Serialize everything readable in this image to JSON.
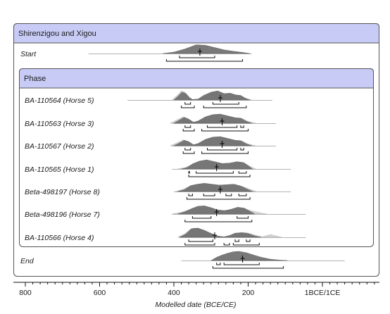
{
  "chart_data": {
    "type": "area",
    "group_title": "Shirenzigou and Xigou",
    "phase_title": "Phase",
    "xlabel": "Modelled date (BCE/CE)",
    "x_axis": {
      "min": 800,
      "max": 0,
      "direction": "BCE descending",
      "ticks": [
        {
          "value": 800,
          "label": "800"
        },
        {
          "value": 600,
          "label": "600"
        },
        {
          "value": 400,
          "label": "400"
        },
        {
          "value": 200,
          "label": "200"
        },
        {
          "value": 0,
          "label": "1BCE/1CE"
        }
      ]
    },
    "rows": [
      {
        "name": "Start",
        "median": 330,
        "range_1": [
          [
            385,
            290
          ]
        ],
        "range_2": [
          [
            420,
            215
          ]
        ],
        "line_from": 630,
        "line_to": 190,
        "posterior": [
          [
            430,
            0
          ],
          [
            400,
            0.15
          ],
          [
            370,
            0.5
          ],
          [
            340,
            0.95
          ],
          [
            315,
            0.9
          ],
          [
            290,
            0.65
          ],
          [
            265,
            0.4
          ],
          [
            240,
            0.25
          ],
          [
            215,
            0.12
          ],
          [
            195,
            0
          ]
        ]
      },
      {
        "name": "BA-110564 (Horse 5)",
        "median": 275,
        "range_1": [
          [
            370,
            355
          ],
          [
            295,
            225
          ]
        ],
        "range_2": [
          [
            380,
            345
          ],
          [
            320,
            205
          ]
        ],
        "line_from": 525,
        "line_to": 135,
        "likelihood": [
          [
            405,
            0
          ],
          [
            390,
            0.55
          ],
          [
            380,
            1.0
          ],
          [
            370,
            0.85
          ],
          [
            358,
            0.3
          ],
          [
            350,
            0.05
          ],
          [
            335,
            0.05
          ],
          [
            320,
            0.3
          ],
          [
            300,
            0.75
          ],
          [
            280,
            0.9
          ],
          [
            262,
            0.6
          ],
          [
            245,
            0.7
          ],
          [
            232,
            0.55
          ],
          [
            218,
            0.45
          ],
          [
            205,
            0.15
          ],
          [
            190,
            0
          ]
        ],
        "posterior": [
          [
            400,
            0
          ],
          [
            388,
            0.45
          ],
          [
            378,
            0.85
          ],
          [
            368,
            0.7
          ],
          [
            358,
            0.25
          ],
          [
            350,
            0.05
          ],
          [
            335,
            0.1
          ],
          [
            320,
            0.5
          ],
          [
            300,
            0.85
          ],
          [
            282,
            1.0
          ],
          [
            265,
            0.7
          ],
          [
            248,
            0.75
          ],
          [
            235,
            0.55
          ],
          [
            220,
            0.5
          ],
          [
            208,
            0.2
          ],
          [
            195,
            0
          ]
        ]
      },
      {
        "name": "BA-110563 (Horse 3)",
        "median": 270,
        "range_1": [
          [
            370,
            355
          ],
          [
            310,
            230
          ],
          [
            220,
            212
          ]
        ],
        "range_2": [
          [
            375,
            345
          ],
          [
            325,
            200
          ]
        ],
        "line_from": 405,
        "line_to": 125,
        "likelihood": [
          [
            410,
            0
          ],
          [
            390,
            0.4
          ],
          [
            375,
            0.7
          ],
          [
            360,
            0.45
          ],
          [
            345,
            0.1
          ],
          [
            330,
            0.2
          ],
          [
            310,
            0.7
          ],
          [
            290,
            0.9
          ],
          [
            270,
            0.85
          ],
          [
            250,
            0.75
          ],
          [
            230,
            0.55
          ],
          [
            215,
            0.5
          ],
          [
            200,
            0.2
          ],
          [
            180,
            0
          ]
        ],
        "posterior": [
          [
            400,
            0
          ],
          [
            385,
            0.35
          ],
          [
            372,
            0.65
          ],
          [
            360,
            0.45
          ],
          [
            348,
            0.1
          ],
          [
            335,
            0.25
          ],
          [
            315,
            0.7
          ],
          [
            295,
            0.95
          ],
          [
            275,
            1.0
          ],
          [
            255,
            0.8
          ],
          [
            235,
            0.6
          ],
          [
            220,
            0.55
          ],
          [
            205,
            0.2
          ],
          [
            190,
            0
          ]
        ]
      },
      {
        "name": "BA-110567 (Horse 2)",
        "median": 270,
        "range_1": [
          [
            370,
            355
          ],
          [
            310,
            230
          ],
          [
            220,
            212
          ]
        ],
        "range_2": [
          [
            375,
            345
          ],
          [
            325,
            200
          ]
        ],
        "line_from": 405,
        "line_to": 125,
        "likelihood": [
          [
            410,
            0
          ],
          [
            390,
            0.35
          ],
          [
            375,
            0.65
          ],
          [
            360,
            0.45
          ],
          [
            345,
            0.1
          ],
          [
            330,
            0.2
          ],
          [
            310,
            0.7
          ],
          [
            290,
            0.9
          ],
          [
            270,
            0.85
          ],
          [
            250,
            0.75
          ],
          [
            230,
            0.55
          ],
          [
            215,
            0.5
          ],
          [
            200,
            0.2
          ],
          [
            180,
            0
          ]
        ],
        "posterior": [
          [
            400,
            0
          ],
          [
            385,
            0.3
          ],
          [
            372,
            0.6
          ],
          [
            360,
            0.45
          ],
          [
            348,
            0.1
          ],
          [
            335,
            0.25
          ],
          [
            315,
            0.7
          ],
          [
            295,
            0.95
          ],
          [
            275,
            1.0
          ],
          [
            255,
            0.8
          ],
          [
            235,
            0.6
          ],
          [
            220,
            0.55
          ],
          [
            205,
            0.2
          ],
          [
            190,
            0
          ]
        ]
      },
      {
        "name": "BA-110565 (Horse 1)",
        "median": 285,
        "range_1": [
          [
            360,
            358
          ],
          [
            340,
            240
          ],
          [
            225,
            205
          ]
        ],
        "range_2": [
          [
            360,
            195
          ]
        ],
        "line_from": 405,
        "line_to": 85,
        "likelihood": [
          [
            390,
            0
          ],
          [
            370,
            0.15
          ],
          [
            350,
            0.5
          ],
          [
            330,
            0.75
          ],
          [
            310,
            0.85
          ],
          [
            285,
            0.7
          ],
          [
            265,
            0.55
          ],
          [
            245,
            0.6
          ],
          [
            225,
            0.75
          ],
          [
            210,
            0.65
          ],
          [
            195,
            0.3
          ],
          [
            180,
            0
          ]
        ],
        "posterior": [
          [
            380,
            0
          ],
          [
            365,
            0.15
          ],
          [
            350,
            0.55
          ],
          [
            332,
            0.85
          ],
          [
            312,
            1.0
          ],
          [
            290,
            0.8
          ],
          [
            270,
            0.6
          ],
          [
            250,
            0.65
          ],
          [
            230,
            0.8
          ],
          [
            212,
            0.7
          ],
          [
            200,
            0.35
          ],
          [
            188,
            0
          ]
        ]
      },
      {
        "name": "Beta-498197 (Horse 8)",
        "median": 275,
        "range_1": [
          [
            360,
            350
          ],
          [
            320,
            290
          ],
          [
            260,
            245
          ],
          [
            225,
            205
          ]
        ],
        "range_2": [
          [
            365,
            195
          ]
        ],
        "line_from": 400,
        "line_to": 85,
        "likelihood": [
          [
            395,
            0
          ],
          [
            375,
            0.25
          ],
          [
            355,
            0.6
          ],
          [
            335,
            0.75
          ],
          [
            315,
            0.8
          ],
          [
            295,
            0.75
          ],
          [
            275,
            0.65
          ],
          [
            255,
            0.7
          ],
          [
            235,
            0.75
          ],
          [
            215,
            0.55
          ],
          [
            195,
            0.25
          ],
          [
            178,
            0
          ]
        ],
        "posterior": [
          [
            390,
            0
          ],
          [
            372,
            0.2
          ],
          [
            355,
            0.65
          ],
          [
            337,
            0.8
          ],
          [
            318,
            0.9
          ],
          [
            298,
            0.8
          ],
          [
            278,
            0.7
          ],
          [
            258,
            0.75
          ],
          [
            238,
            0.8
          ],
          [
            220,
            0.6
          ],
          [
            202,
            0.25
          ],
          [
            188,
            0
          ]
        ]
      },
      {
        "name": "Beta-498196 (Horse 7)",
        "median": 285,
        "range_1": [
          [
            350,
            300
          ],
          [
            230,
            200
          ]
        ],
        "range_2": [
          [
            370,
            190
          ]
        ],
        "line_from": 405,
        "line_to": 45,
        "likelihood": [
          [
            405,
            0
          ],
          [
            380,
            0.2
          ],
          [
            360,
            0.45
          ],
          [
            340,
            0.65
          ],
          [
            320,
            0.7
          ],
          [
            300,
            0.6
          ],
          [
            280,
            0.45
          ],
          [
            260,
            0.4
          ],
          [
            240,
            0.55
          ],
          [
            220,
            0.6
          ],
          [
            200,
            0.45
          ],
          [
            180,
            0.25
          ],
          [
            165,
            0.1
          ],
          [
            150,
            0
          ]
        ],
        "posterior": [
          [
            390,
            0
          ],
          [
            370,
            0.25
          ],
          [
            352,
            0.6
          ],
          [
            335,
            0.85
          ],
          [
            318,
            0.9
          ],
          [
            300,
            0.7
          ],
          [
            282,
            0.45
          ],
          [
            265,
            0.35
          ],
          [
            248,
            0.5
          ],
          [
            228,
            0.75
          ],
          [
            210,
            0.65
          ],
          [
            195,
            0.3
          ],
          [
            182,
            0
          ]
        ]
      },
      {
        "name": "BA-110566 (Horse 4)",
        "median": 290,
        "range_1": [
          [
            360,
            295
          ],
          [
            235,
            225
          ],
          [
            205,
            195
          ]
        ],
        "range_2": [
          [
            370,
            290
          ],
          [
            265,
            250
          ],
          [
            240,
            170
          ]
        ],
        "line_from": 385,
        "line_to": 45,
        "likelihood": [
          [
            390,
            0
          ],
          [
            372,
            0.35
          ],
          [
            355,
            0.9
          ],
          [
            338,
            1.0
          ],
          [
            320,
            0.8
          ],
          [
            300,
            0.45
          ],
          [
            282,
            0.15
          ],
          [
            265,
            0.05
          ],
          [
            248,
            0.15
          ],
          [
            232,
            0.4
          ],
          [
            215,
            0.55
          ],
          [
            198,
            0.45
          ],
          [
            178,
            0.2
          ],
          [
            162,
            0.05
          ],
          [
            140,
            0.3
          ],
          [
            125,
            0.15
          ],
          [
            110,
            0
          ]
        ],
        "posterior": [
          [
            385,
            0
          ],
          [
            368,
            0.35
          ],
          [
            352,
            0.95
          ],
          [
            335,
            1.0
          ],
          [
            318,
            0.75
          ],
          [
            300,
            0.4
          ],
          [
            282,
            0.12
          ],
          [
            265,
            0.05
          ],
          [
            250,
            0.2
          ],
          [
            235,
            0.45
          ],
          [
            218,
            0.5
          ],
          [
            200,
            0.4
          ],
          [
            182,
            0.15
          ],
          [
            165,
            0
          ]
        ]
      },
      {
        "name": "End",
        "median": 215,
        "range_1": [
          [
            285,
            275
          ],
          [
            265,
            170
          ]
        ],
        "range_2": [
          [
            295,
            105
          ]
        ],
        "line_from": 380,
        "line_to": -60,
        "posterior": [
          [
            300,
            0
          ],
          [
            285,
            0.35
          ],
          [
            270,
            0.6
          ],
          [
            255,
            0.8
          ],
          [
            240,
            0.95
          ],
          [
            225,
            1.0
          ],
          [
            205,
            0.85
          ],
          [
            185,
            0.6
          ],
          [
            165,
            0.35
          ],
          [
            140,
            0.15
          ],
          [
            115,
            0.05
          ],
          [
            95,
            0
          ]
        ]
      }
    ],
    "colors": {
      "likelihood": "#d2d2d2",
      "posterior": "#6e6e6e",
      "panel_header": "#c8cbf6",
      "frame": "#555555"
    }
  }
}
